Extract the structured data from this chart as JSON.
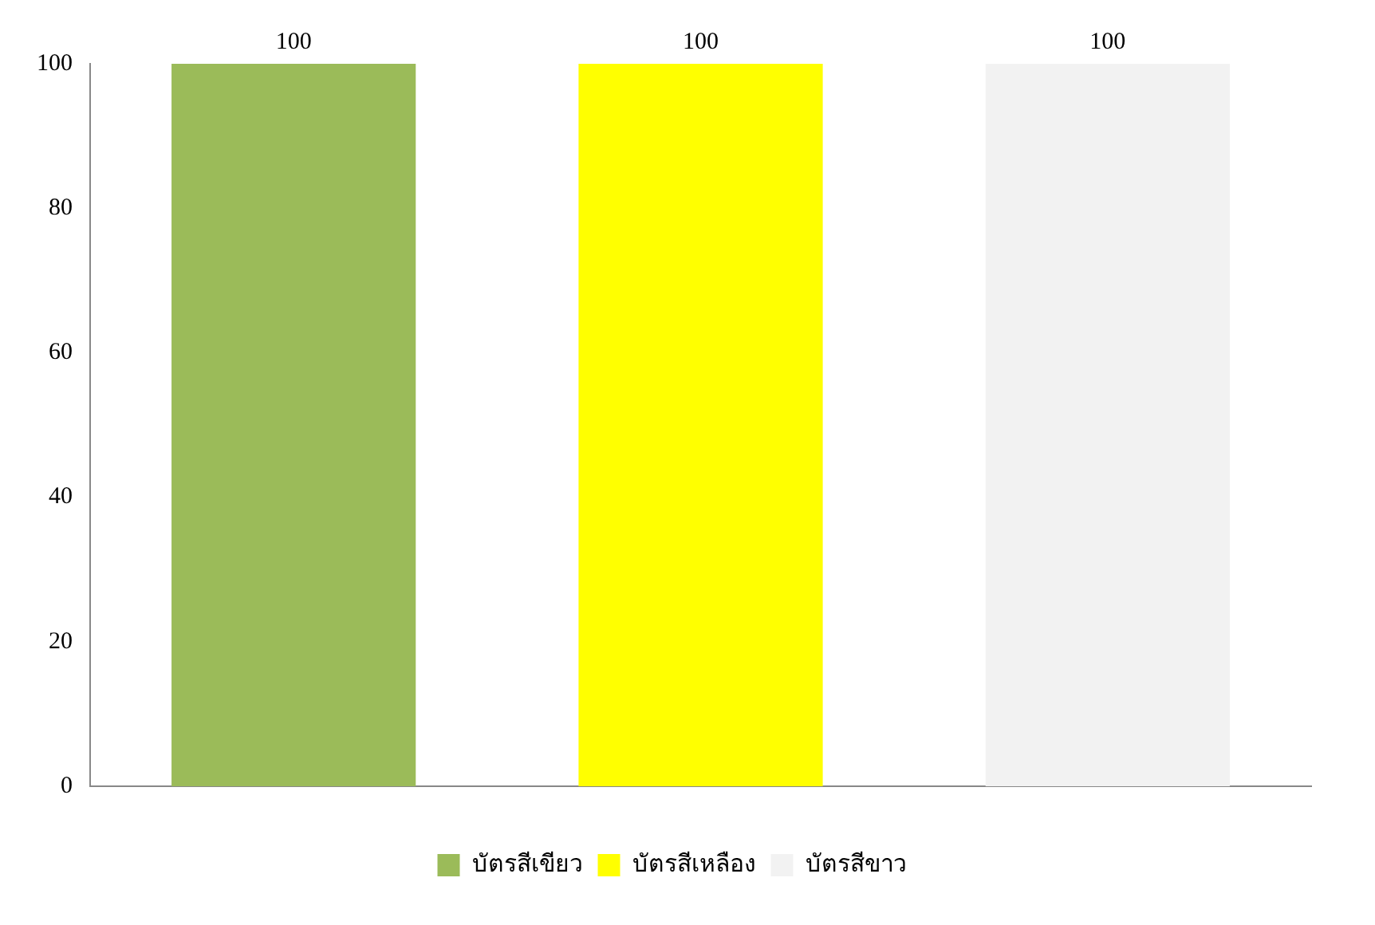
{
  "chart_data": {
    "type": "bar",
    "categories": [
      null,
      null,
      null
    ],
    "series": [
      {
        "name": "บัตรสีเขียว",
        "color": "#9bbb59",
        "values": [
          100,
          null,
          null
        ]
      },
      {
        "name": "บัตรสีเหลือง",
        "color": "#ffff00",
        "values": [
          null,
          100,
          null
        ]
      },
      {
        "name": "บัตรสีขาว",
        "color": "#f2f2f2",
        "values": [
          null,
          null,
          100
        ]
      }
    ],
    "ylim": [
      0,
      100
    ],
    "yticks": [
      0,
      20,
      40,
      60,
      80,
      100
    ],
    "grid": false,
    "legend": "bottom",
    "data_labels": true
  }
}
